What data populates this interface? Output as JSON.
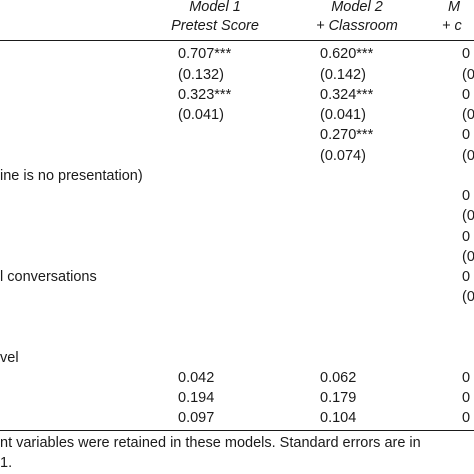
{
  "header": {
    "model1": {
      "title": "Model 1",
      "subtitle": "Pretest Score"
    },
    "model2": {
      "title": "Model 2",
      "subtitle": "+ Classroom"
    },
    "model3": {
      "title": "M",
      "subtitle": "+ c"
    }
  },
  "rows": {
    "r1": {
      "label": "",
      "m1": "0.707***",
      "m2": "0.620***",
      "m3": "0"
    },
    "r2": {
      "label": "",
      "m1": "(0.132)",
      "m2": "(0.142)",
      "m3": "(0"
    },
    "r3": {
      "label": "",
      "m1": "0.323***",
      "m2": "0.324***",
      "m3": "0"
    },
    "r4": {
      "label": "",
      "m1": "(0.041)",
      "m2": "(0.041)",
      "m3": "(0"
    },
    "r5": {
      "label": "",
      "m1": "",
      "m2": "0.270***",
      "m3": "0"
    },
    "r6": {
      "label": "",
      "m1": "",
      "m2": "(0.074)",
      "m3": "(0"
    },
    "r7": {
      "label": "ine is no presentation)",
      "m1": "",
      "m2": "",
      "m3": ""
    },
    "r8": {
      "label": "",
      "m1": "",
      "m2": "",
      "m3": "0"
    },
    "r9": {
      "label": "",
      "m1": "",
      "m2": "",
      "m3": "(0"
    },
    "r10": {
      "label": "",
      "m1": "",
      "m2": "",
      "m3": "0"
    },
    "r11": {
      "label": "",
      "m1": "",
      "m2": "",
      "m3": "(0"
    },
    "r12": {
      "label": "l conversations",
      "m1": "",
      "m2": "",
      "m3": "0"
    },
    "r13": {
      "label": "",
      "m1": "",
      "m2": "",
      "m3": "(0"
    },
    "r14": {
      "label": "vel",
      "m1": "",
      "m2": "",
      "m3": ""
    },
    "r15": {
      "label": "",
      "m1": "0.042",
      "m2": "0.062",
      "m3": "0"
    },
    "r16": {
      "label": "",
      "m1": "0.194",
      "m2": "0.179",
      "m3": "0"
    },
    "r17": {
      "label": "",
      "m1": "0.097",
      "m2": "0.104",
      "m3": "0"
    }
  },
  "note": {
    "line1": "nt variables were retained in these models. Standard errors are in",
    "line2": "1."
  }
}
